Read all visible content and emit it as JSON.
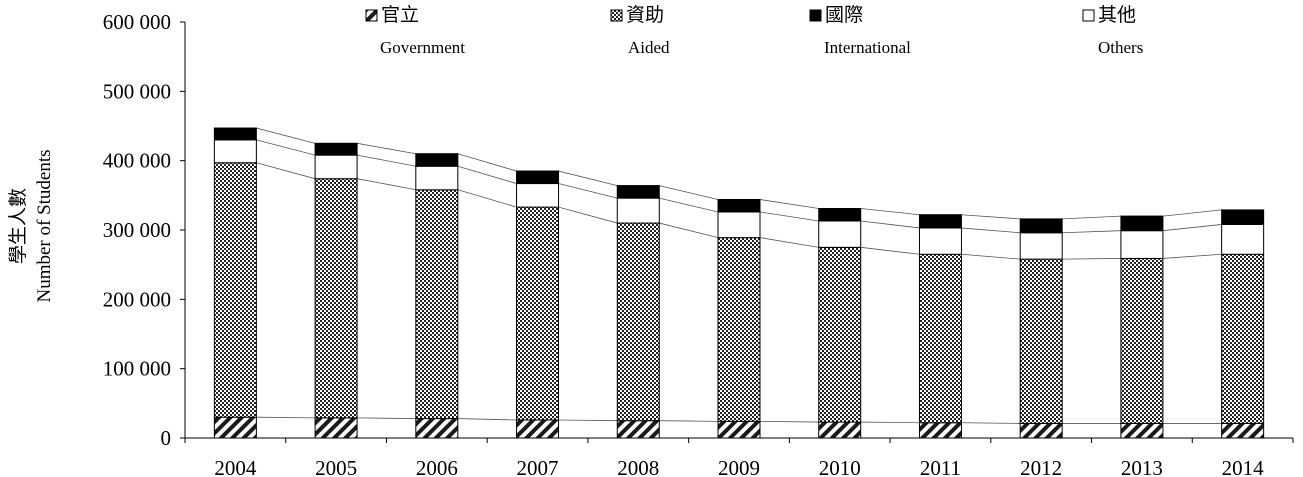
{
  "chart_data": {
    "type": "bar",
    "stacked": true,
    "categories": [
      "2004",
      "2005",
      "2006",
      "2007",
      "2008",
      "2009",
      "2010",
      "2011",
      "2012",
      "2013",
      "2014"
    ],
    "series": [
      {
        "name": "官立 Government",
        "name_zh": "官立",
        "name_en": "Government",
        "pattern": "diagonal-hatch",
        "values": [
          30000,
          29000,
          28000,
          26000,
          25000,
          24000,
          23000,
          22000,
          21000,
          21000,
          21000
        ]
      },
      {
        "name": "資助 Aided",
        "name_zh": "資助",
        "name_en": "Aided",
        "pattern": "dotted",
        "values": [
          367000,
          345000,
          330000,
          307000,
          285000,
          265000,
          252000,
          243000,
          237000,
          238000,
          244000
        ]
      },
      {
        "name": "其他 Others",
        "name_zh": "其他",
        "name_en": "Others",
        "pattern": "white",
        "values": [
          33000,
          34000,
          34000,
          34000,
          36000,
          37000,
          38000,
          38000,
          38000,
          40000,
          43000
        ]
      },
      {
        "name": "國際 International",
        "name_zh": "國際",
        "name_en": "International",
        "pattern": "black",
        "values": [
          17000,
          17000,
          18000,
          18000,
          18000,
          18000,
          18000,
          19000,
          20000,
          21000,
          21000
        ]
      }
    ],
    "legend_order": [
      "官立 Government",
      "資助 Aided",
      "國際 International",
      "其他 Others"
    ],
    "ylabel_zh": "學生人數",
    "ylabel_en": "Number of Students",
    "ylim": [
      0,
      600000
    ],
    "yticks": [
      0,
      100000,
      200000,
      300000,
      400000,
      500000,
      600000
    ],
    "ytick_labels": [
      "0",
      "100 000",
      "200 000",
      "300 000",
      "400 000",
      "500 000",
      "600 000"
    ],
    "grid": false,
    "legend_position": "top",
    "connector_lines": true,
    "colors": {
      "bar_outline": "#000000",
      "hatch": "#000000",
      "others_fill": "#ffffff",
      "international_fill": "#000000"
    }
  }
}
